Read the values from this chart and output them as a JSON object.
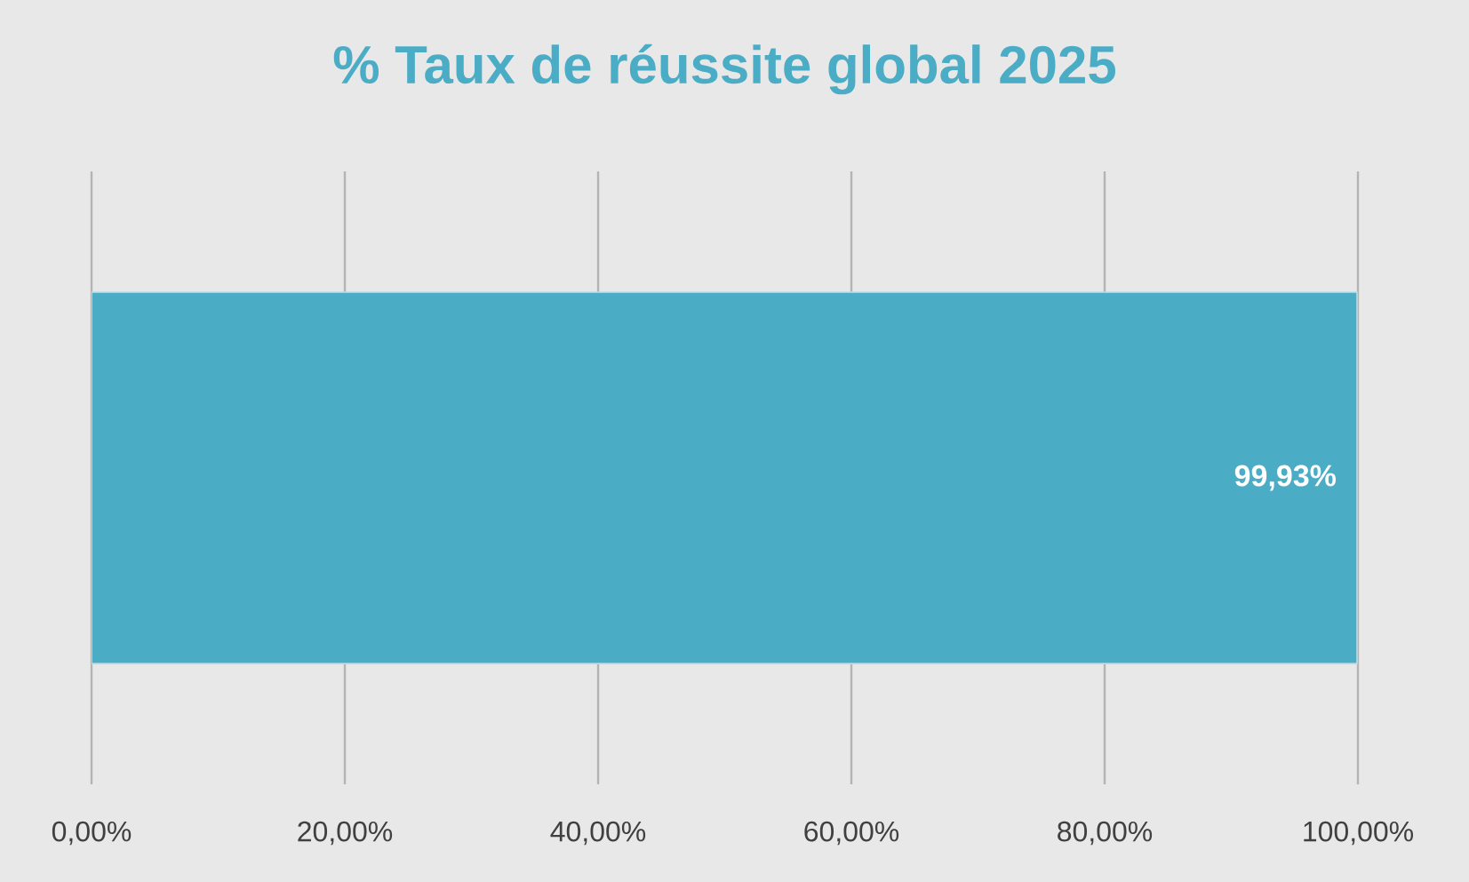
{
  "chart_data": {
    "type": "bar",
    "orientation": "horizontal",
    "title": "% Taux de réussite global 2025",
    "categories": [
      null
    ],
    "values": [
      99.93
    ],
    "color": "#4bacc6",
    "value_labels": [
      "99,93%"
    ],
    "xlim": [
      0,
      100
    ],
    "xticks": [
      {
        "value": 0,
        "label": "0,00%"
      },
      {
        "value": 20,
        "label": "20,00%"
      },
      {
        "value": 40,
        "label": "40,00%"
      },
      {
        "value": 60,
        "label": "60,00%"
      },
      {
        "value": 80,
        "label": "80,00%"
      },
      {
        "value": 100,
        "label": "100,00%"
      }
    ],
    "grid": "x"
  }
}
